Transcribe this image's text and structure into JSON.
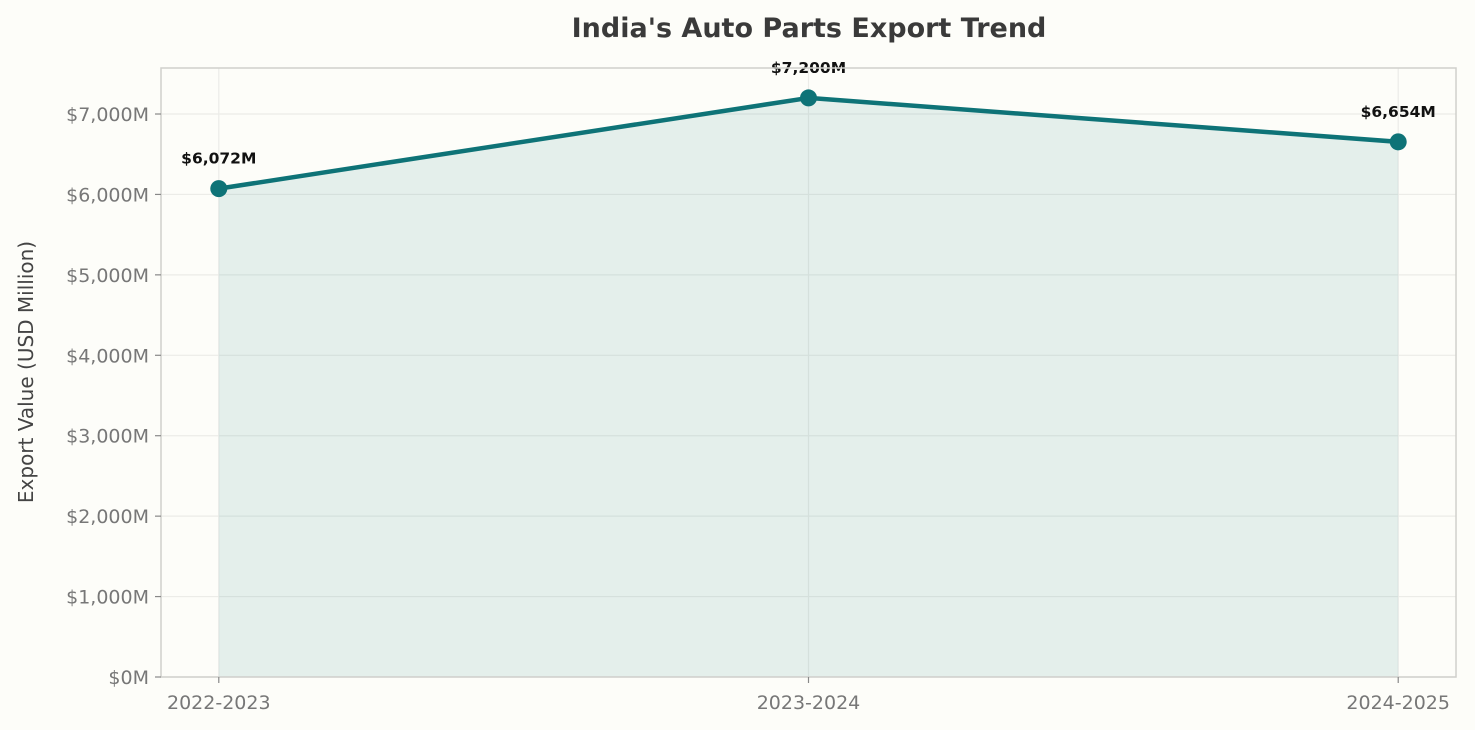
{
  "chart_data": {
    "type": "area",
    "title": "India's Auto Parts Export Trend",
    "xlabel": "",
    "ylabel": "Export Value (USD Million)",
    "categories": [
      "2022-2023",
      "2023-2024",
      "2024-2025"
    ],
    "values": [
      6072,
      7200,
      6654
    ],
    "data_labels": [
      "$6,072M",
      "$7,200M",
      "$6,654M"
    ],
    "yticks": [
      0,
      1000,
      2000,
      3000,
      4000,
      5000,
      6000,
      7000
    ],
    "ytick_labels": [
      "$0M",
      "$1,000M",
      "$2,000M",
      "$3,000M",
      "$4,000M",
      "$5,000M",
      "$6,000M",
      "$7,000M"
    ],
    "ylim": [
      0,
      7572
    ],
    "grid": true,
    "colors": {
      "line": "#0e7377",
      "fill": "#0e7377",
      "background": "#fdfdf9"
    }
  }
}
